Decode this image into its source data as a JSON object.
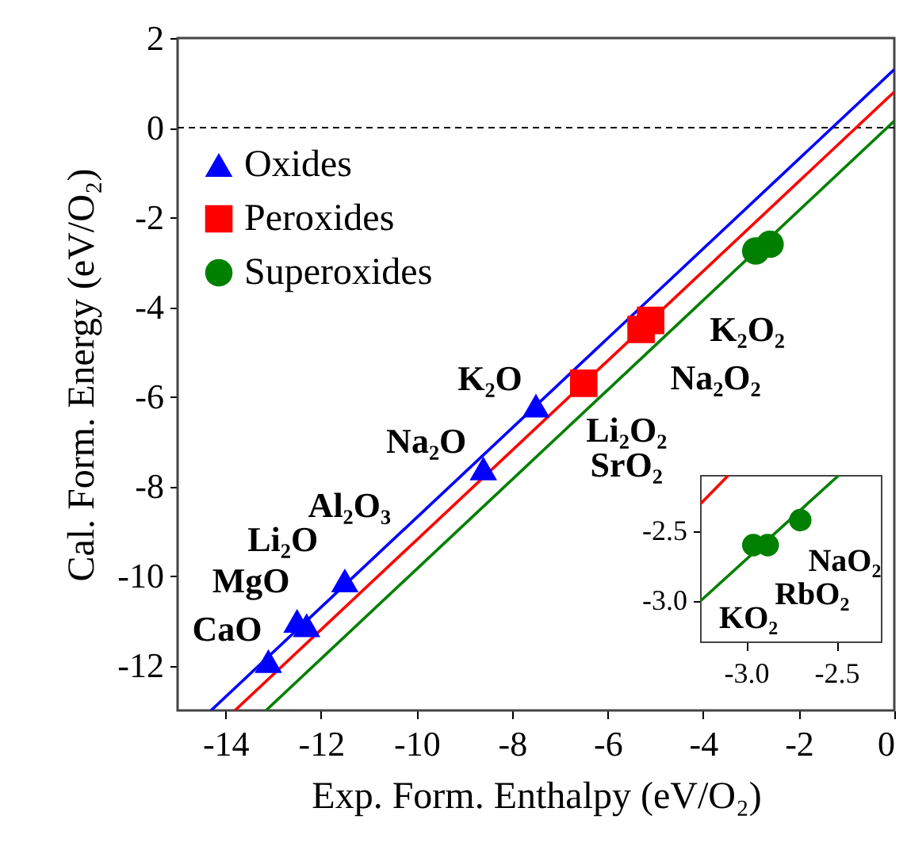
{
  "chart_data": [
    {
      "type": "scatter",
      "xlabel": "Exp. Form. Enthalpy (eV/O₂)",
      "ylabel": "Cal. Form. Energy (eV/O₂)",
      "xlim": [
        -15,
        0
      ],
      "ylim": [
        -13,
        2
      ],
      "xticks": [
        -14,
        -12,
        -10,
        -8,
        -6,
        -4,
        -2,
        0
      ],
      "yticks": [
        -12,
        -10,
        -8,
        -6,
        -4,
        -2,
        0,
        2
      ],
      "grid": false,
      "legend": "top left",
      "series": [
        {
          "type": "line",
          "color": "#0000ff",
          "x": [
            -14.3,
            0
          ],
          "values": [
            -13,
            1.3
          ]
        },
        {
          "type": "line",
          "color": "#ff0000",
          "x": [
            -13.8,
            0
          ],
          "values": [
            -13,
            0.8
          ]
        },
        {
          "type": "line",
          "color": "#008000",
          "x": [
            -13.15,
            0
          ],
          "values": [
            -13,
            0.15
          ]
        },
        {
          "name": "Oxides",
          "color": "#0000ff",
          "marker": "triangle",
          "x": [
            -7.5,
            -8.6,
            -11.5,
            -12.3,
            -12.5,
            -13.1
          ],
          "values": [
            -6.2,
            -7.6,
            -10.1,
            -11.1,
            -11.0,
            -11.9
          ]
        },
        {
          "name": "Peroxides",
          "color": "#ff0000",
          "marker": "square",
          "x": [
            -5.1,
            -5.3,
            -6.5
          ],
          "values": [
            -4.3,
            -4.5,
            -5.7
          ]
        },
        {
          "name": "Superoxides",
          "color": "#008000",
          "marker": "circle",
          "x": [
            -2.9,
            -2.6
          ],
          "values": [
            -2.75,
            -2.6
          ]
        }
      ],
      "ref_lines": [
        {
          "axis": "y",
          "value": 0,
          "color": "#000000",
          "line_style": "dashed"
        }
      ],
      "annotations": [
        {
          "text": "K₂O",
          "x": -7.5,
          "y": -6.2
        },
        {
          "text": "Na₂O",
          "x": -8.6,
          "y": -7.6
        },
        {
          "text": "Al₂O₃",
          "x": -11.5,
          "y": -10.1
        },
        {
          "text": "Li₂O",
          "x": -12.3,
          "y": -11.1
        },
        {
          "text": "MgO",
          "x": -12.5,
          "y": -11.0
        },
        {
          "text": "CaO",
          "x": -13.1,
          "y": -11.9
        },
        {
          "text": "Li₂O₂",
          "x": -6.5,
          "y": -5.7
        },
        {
          "text": "SrO₂",
          "x": -6.5,
          "y": -5.7
        },
        {
          "text": "K₂O₂",
          "x": -5.1,
          "y": -4.3
        },
        {
          "text": "Na₂O₂",
          "x": -5.3,
          "y": -4.5
        }
      ]
    },
    {
      "type": "scatter",
      "xlim": [
        -3.25,
        -2.25
      ],
      "ylim": [
        -3.3,
        -2.1
      ],
      "xticks": [
        {
          "value": -3.0,
          "label": "-3.0"
        },
        -2.5
      ],
      "yticks": [
        {
          "value": -3.0,
          "label": "-3.0"
        },
        -2.5
      ],
      "grid": false,
      "series": [
        {
          "type": "line",
          "color": "#ff0000",
          "x": [
            -3.25,
            -3.1
          ],
          "values": [
            -2.3,
            -2.1
          ]
        },
        {
          "type": "line",
          "color": "#008000",
          "x": [
            -3.25,
            -2.49
          ],
          "values": [
            -3.0,
            -2.1
          ]
        },
        {
          "color": "#008000",
          "marker": "circle",
          "x": [
            -2.96,
            -2.88,
            -2.7
          ],
          "values": [
            -2.6,
            -2.6,
            -2.42
          ]
        }
      ],
      "annotations": [
        {
          "text": "NaO₂",
          "x": -2.7,
          "y": -2.42
        },
        {
          "text": "RbO₂",
          "x": -2.88,
          "y": -2.6
        },
        {
          "text": "KO₂",
          "x": -2.96,
          "y": -2.6
        }
      ]
    }
  ]
}
